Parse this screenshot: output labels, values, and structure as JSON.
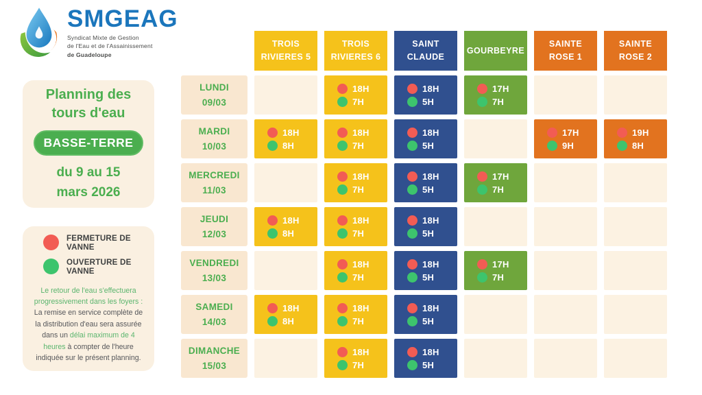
{
  "logo": {
    "name": "SMGEAG",
    "tagline_lines": [
      "Syndicat Mixte de Gestion",
      "de l'Eau et de l'Assainissement",
      "de Guadeloupe"
    ]
  },
  "info_card": {
    "title_line1": "Planning des",
    "title_line2": "tours d'eau",
    "badge": "BASSE-TERRE",
    "date_line1": "du 9 au 15",
    "date_line2": "mars 2026"
  },
  "legend": {
    "items": [
      {
        "label": "FERMETURE DE VANNE",
        "color": "#F25C54"
      },
      {
        "label": "OUVERTURE DE VANNE",
        "color": "#3DC46D"
      }
    ],
    "note_segments": [
      "Le retour de l'eau s'effectuera progressivement dans les foyers :",
      "La remise en service complète de la distribution d'eau sera assurée dans un",
      "délai maximum de 4 heures",
      "à compter de l'heure indiquée sur le présent planning."
    ]
  },
  "table": {
    "columns": [
      {
        "lines": [
          "TROIS",
          "RIVIERES 5"
        ],
        "color": "#F5C21B"
      },
      {
        "lines": [
          "TROIS",
          "RIVIERES 6"
        ],
        "color": "#F5C21B"
      },
      {
        "lines": [
          "SAINT",
          "CLAUDE"
        ],
        "color": "#30508F"
      },
      {
        "lines": [
          "GOURBEYRE"
        ],
        "color": "#6FA63C"
      },
      {
        "lines": [
          "SAINTE",
          "ROSE 1"
        ],
        "color": "#E2731F"
      },
      {
        "lines": [
          "SAINTE",
          "ROSE 2"
        ],
        "color": "#E2731F"
      }
    ],
    "rows": [
      {
        "day": "LUNDI",
        "date": "09/03",
        "cells": [
          null,
          {
            "close": "18H",
            "open": "7H"
          },
          {
            "close": "18H",
            "open": "5H"
          },
          {
            "close": "17H",
            "open": "7H"
          },
          null,
          null
        ]
      },
      {
        "day": "MARDI",
        "date": "10/03",
        "cells": [
          {
            "close": "18H",
            "open": "8H"
          },
          {
            "close": "18H",
            "open": "7H"
          },
          {
            "close": "18H",
            "open": "5H"
          },
          null,
          {
            "close": "17H",
            "open": "9H"
          },
          {
            "close": "19H",
            "open": "8H"
          }
        ]
      },
      {
        "day": "MERCREDI",
        "date": "11/03",
        "cells": [
          null,
          {
            "close": "18H",
            "open": "7H"
          },
          {
            "close": "18H",
            "open": "5H"
          },
          {
            "close": "17H",
            "open": "7H"
          },
          null,
          null
        ]
      },
      {
        "day": "JEUDI",
        "date": "12/03",
        "cells": [
          {
            "close": "18H",
            "open": "8H"
          },
          {
            "close": "18H",
            "open": "7H"
          },
          {
            "close": "18H",
            "open": "5H"
          },
          null,
          null,
          null
        ]
      },
      {
        "day": "VENDREDI",
        "date": "13/03",
        "cells": [
          null,
          {
            "close": "18H",
            "open": "7H"
          },
          {
            "close": "18H",
            "open": "5H"
          },
          {
            "close": "17H",
            "open": "7H"
          },
          null,
          null
        ]
      },
      {
        "day": "SAMEDI",
        "date": "14/03",
        "cells": [
          {
            "close": "18H",
            "open": "8H"
          },
          {
            "close": "18H",
            "open": "7H"
          },
          {
            "close": "18H",
            "open": "5H"
          },
          null,
          null,
          null
        ]
      },
      {
        "day": "DIMANCHE",
        "date": "15/03",
        "cells": [
          null,
          {
            "close": "18H",
            "open": "7H"
          },
          {
            "close": "18H",
            "open": "5H"
          },
          null,
          null,
          null
        ]
      }
    ]
  },
  "colors": {
    "closure_dot": "#F25C54",
    "opening_dot": "#3DC46D",
    "green_text": "#4BAE4F",
    "card_cream": "#FAF0E1",
    "day_cream": "#F9E7D0",
    "empty_cream": "#FCF2E2",
    "logo_blue": "#1B76BC"
  }
}
